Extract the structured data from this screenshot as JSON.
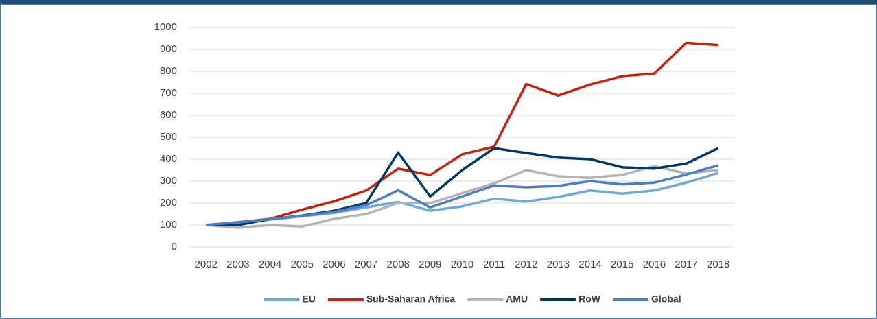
{
  "chart_data": {
    "type": "line",
    "x": [
      "2002",
      "2003",
      "2004",
      "2005",
      "2006",
      "2007",
      "2008",
      "2009",
      "2010",
      "2011",
      "2012",
      "2013",
      "2014",
      "2015",
      "2016",
      "2017",
      "2018"
    ],
    "series": [
      {
        "name": "EU",
        "color": "#6fa8dc",
        "values": [
          100,
          110,
          125,
          140,
          155,
          180,
          205,
          165,
          185,
          220,
          207,
          228,
          257,
          243,
          257,
          293,
          337
        ]
      },
      {
        "name": "Sub-Saharan Africa",
        "color": "#c8200e",
        "values": [
          100,
          113,
          128,
          170,
          208,
          257,
          357,
          328,
          422,
          457,
          742,
          690,
          740,
          778,
          790,
          930,
          920
        ]
      },
      {
        "name": "AMU",
        "color": "#b4b4b4",
        "values": [
          100,
          87,
          100,
          93,
          128,
          150,
          200,
          200,
          245,
          290,
          350,
          322,
          315,
          328,
          368,
          335,
          350
        ]
      },
      {
        "name": "RoW",
        "color": "#003865",
        "values": [
          100,
          100,
          127,
          143,
          165,
          200,
          430,
          230,
          350,
          450,
          428,
          407,
          400,
          363,
          357,
          380,
          450
        ]
      },
      {
        "name": "Global",
        "color": "#4a7fc8",
        "values": [
          100,
          112,
          127,
          142,
          160,
          190,
          258,
          180,
          230,
          280,
          272,
          278,
          300,
          285,
          293,
          330,
          372
        ]
      }
    ],
    "ylim": [
      0,
      1000
    ],
    "yticks": [
      0,
      100,
      200,
      300,
      400,
      500,
      600,
      700,
      800,
      900,
      1000
    ],
    "grid": true,
    "legend": "bottom"
  }
}
